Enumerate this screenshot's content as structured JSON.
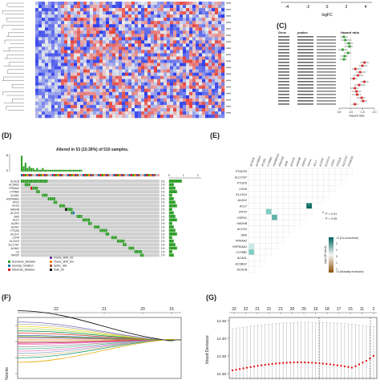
{
  "labels": {
    "c": "(C)",
    "d": "(D)",
    "e": "(E)",
    "f": "(F)",
    "g": "(G)"
  },
  "panel_b": {
    "xlabel": "logFC",
    "ticks": [
      "-4",
      "-2",
      "0",
      "2",
      "4"
    ]
  },
  "panel_c": {
    "xlabel": "Hazard ratio",
    "col1": "Gene",
    "col2": "pvalue",
    "col3": "Hazard ratio",
    "ticks": [
      "0.5",
      "1.0",
      "1.5",
      "2.0"
    ]
  },
  "panel_d": {
    "title": "Altered in 53 (10.39%) of 510 samples.",
    "genes": [
      "ACACB",
      "ACSBG2",
      "PRKAA2",
      "CYP8B1",
      "ACADL",
      "HSP90AA1",
      "HPS1",
      "PHYH",
      "HADHB",
      "ACOX3",
      "SMS",
      "ACLY",
      "ALDH2",
      "ALDH7",
      "PTGDS",
      "ACOX1",
      "LDHA",
      "ELOVL6",
      "SLC27A7",
      "ACAA1",
      "CS",
      "THRSP"
    ],
    "percents": [
      "2%",
      "1%",
      "1%",
      "1%",
      "1%",
      "1%",
      "1%",
      "1%",
      "1%",
      "1%",
      "1%",
      "1%",
      "1%",
      "1%",
      "1%",
      "1%",
      "1%",
      "1%",
      "1%",
      "1%",
      "1%",
      "1%"
    ],
    "legend": [
      "Nonsense_Mutation",
      "Nonstop_Mutation",
      "Missense_Mutation",
      "Frame_Shift_Ins",
      "Frame_Shift_Del",
      "Splice_Site",
      "Multi_Hit"
    ],
    "tmb_ticks": [
      "8",
      "0"
    ],
    "side_ticks": [
      "0",
      "1",
      "2"
    ]
  },
  "panel_e": {
    "genes": [
      "ACACB",
      "ACSBG2",
      "ACADL",
      "CYP8B1",
      "HSP90AA1",
      "PRKAA2",
      "SMS",
      "ACOX3",
      "HADHB",
      "HSPH1",
      "PHYH",
      "ACLY",
      "ALDH2",
      "ELOVL6",
      "LDHA",
      "PTGDS",
      "SLC27A7",
      "PTGES3"
    ],
    "legend_p1": "P < 0.01",
    "legend_p2": "P < 0.05",
    "scale_title": "-log10(P-value)",
    "scale_top": ">3 (Co-occurence)",
    "scale_bottom": ">3 (Mutually exclusive)",
    "scale_ticks": [
      "2",
      "1",
      "0",
      "1",
      "2"
    ]
  },
  "panel_f": {
    "top_ticks": [
      "22",
      "21",
      "20",
      "15"
    ],
    "ylabel": "efficients",
    "colors": [
      "#1a9850",
      "#d73027",
      "#4575b4",
      "#984ea3",
      "#ff7f00",
      "#a65628",
      "#f781bf",
      "#999999",
      "#66c2a5",
      "#e78ac3",
      "#8da0cb",
      "#a6d854",
      "#ffd92f",
      "#e5c494",
      "#b3b3b3",
      "#1b9e77",
      "#7570b3",
      "#e7298a",
      "#66a61e",
      "#e6ab02",
      "#000000"
    ]
  },
  "panel_g": {
    "top_ticks": [
      "22",
      "22",
      "21",
      "21",
      "21",
      "20",
      "20",
      "19",
      "18",
      "17",
      "15",
      "11",
      "2"
    ],
    "yticks": [
      "12.45",
      "12.40",
      "12.35",
      "12.30"
    ],
    "ylabel": "lihood Deviance"
  }
}
